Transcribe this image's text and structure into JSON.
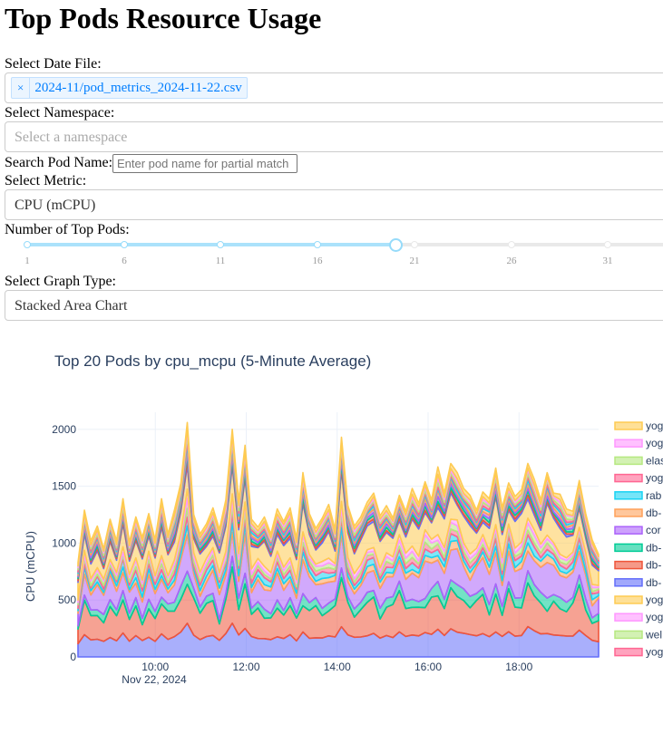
{
  "page": {
    "title": "Top Pods Resource Usage"
  },
  "date_file": {
    "label": "Select Date File:",
    "selected": "2024-11/pod_metrics_2024-11-22.csv",
    "remove_symbol": "×"
  },
  "namespace": {
    "label": "Select Namespace:",
    "placeholder": "Select a namespace"
  },
  "pod_search": {
    "label": "Search Pod Name:",
    "placeholder": "Enter pod name for partial match"
  },
  "metric": {
    "label": "Select Metric:",
    "selected": "CPU (mCPU)"
  },
  "top_pods": {
    "label": "Number of Top Pods:",
    "value": 20,
    "min": 1,
    "max": 36,
    "marks": [
      "1",
      "6",
      "11",
      "16",
      "21",
      "26",
      "31"
    ]
  },
  "graph_type": {
    "label": "Select Graph Type:",
    "selected": "Stacked Area Chart"
  },
  "chart_data": {
    "type": "area",
    "title": "Top 20 Pods by cpu_mcpu (5-Minute Average)",
    "ylabel": "CPU (mCPU)",
    "xlabel": "",
    "date_label": "Nov 22, 2024",
    "x_ticks": [
      "10:00",
      "12:00",
      "14:00",
      "16:00",
      "18:00"
    ],
    "y_ticks": [
      "0",
      "500",
      "1000",
      "1500",
      "2000"
    ],
    "ylim": [
      0,
      2150
    ],
    "x_range_hours": [
      8.3,
      19.75
    ],
    "total_profile": [
      830,
      1290,
      1020,
      1150,
      950,
      1210,
      1020,
      1390,
      1010,
      1230,
      1050,
      1260,
      1030,
      1390,
      1080,
      1290,
      1530,
      2060,
      1250,
      1080,
      1170,
      1310,
      1120,
      1380,
      2000,
      1370,
      1860,
      1210,
      1140,
      1230,
      1080,
      1300,
      1190,
      1310,
      1040,
      1620,
      1260,
      1130,
      1220,
      1340,
      1120,
      1930,
      1330,
      1150,
      1230,
      1360,
      1440,
      1240,
      1330,
      1220,
      1420,
      1280,
      1480,
      1350,
      1540,
      1380,
      1670,
      1440,
      1700,
      1620,
      1480,
      1420,
      1290,
      1450,
      1390,
      1660,
      1310,
      1530,
      1410,
      1470,
      1700,
      1560,
      1380,
      1620,
      1440,
      1430,
      1300,
      1280,
      1550,
      1260,
      1030,
      900
    ],
    "legend": [
      "yog",
      "yog",
      "elas",
      "yog",
      "rab",
      "db-",
      "cor",
      "db-",
      "db-",
      "db-",
      "yog",
      "yog",
      "wel",
      "yog"
    ],
    "series_colors": [
      "#636efa",
      "#ef553b",
      "#00cc96",
      "#ab63fa",
      "#ffa15a",
      "#19d3f3",
      "#ff6692",
      "#b6e880",
      "#ff97ff",
      "#fecb52",
      "#636efa",
      "#ef553b",
      "#00cc96",
      "#ab63fa",
      "#ffa15a",
      "#19d3f3",
      "#ff6692",
      "#b6e880",
      "#ff97ff",
      "#fecb52"
    ]
  }
}
